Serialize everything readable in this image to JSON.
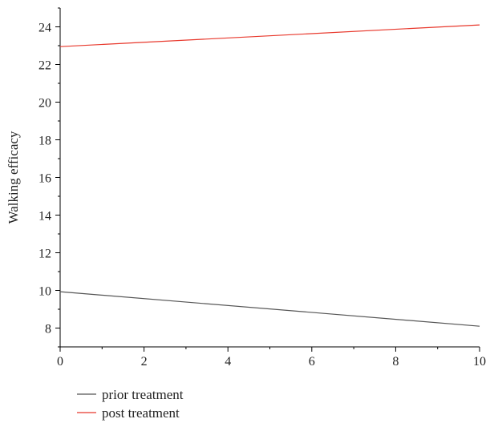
{
  "chart_data": {
    "type": "line",
    "title": "",
    "xlabel": "",
    "ylabel": "Walking efficacy",
    "xlim": [
      0,
      10
    ],
    "ylim": [
      7,
      25
    ],
    "x_ticks": [
      0,
      2,
      4,
      6,
      8,
      10
    ],
    "y_ticks": [
      8,
      10,
      12,
      14,
      16,
      18,
      20,
      22,
      24
    ],
    "x_minor_step": 1,
    "y_minor_step": 1,
    "grid": false,
    "legend_position": "bottom-left",
    "series": [
      {
        "name": "prior treatment",
        "color": "#555555",
        "x": [
          0,
          10
        ],
        "y": [
          9.93,
          8.1
        ]
      },
      {
        "name": "post treatment",
        "color": "#e8382c",
        "x": [
          0,
          10
        ],
        "y": [
          22.95,
          24.1
        ]
      }
    ]
  }
}
